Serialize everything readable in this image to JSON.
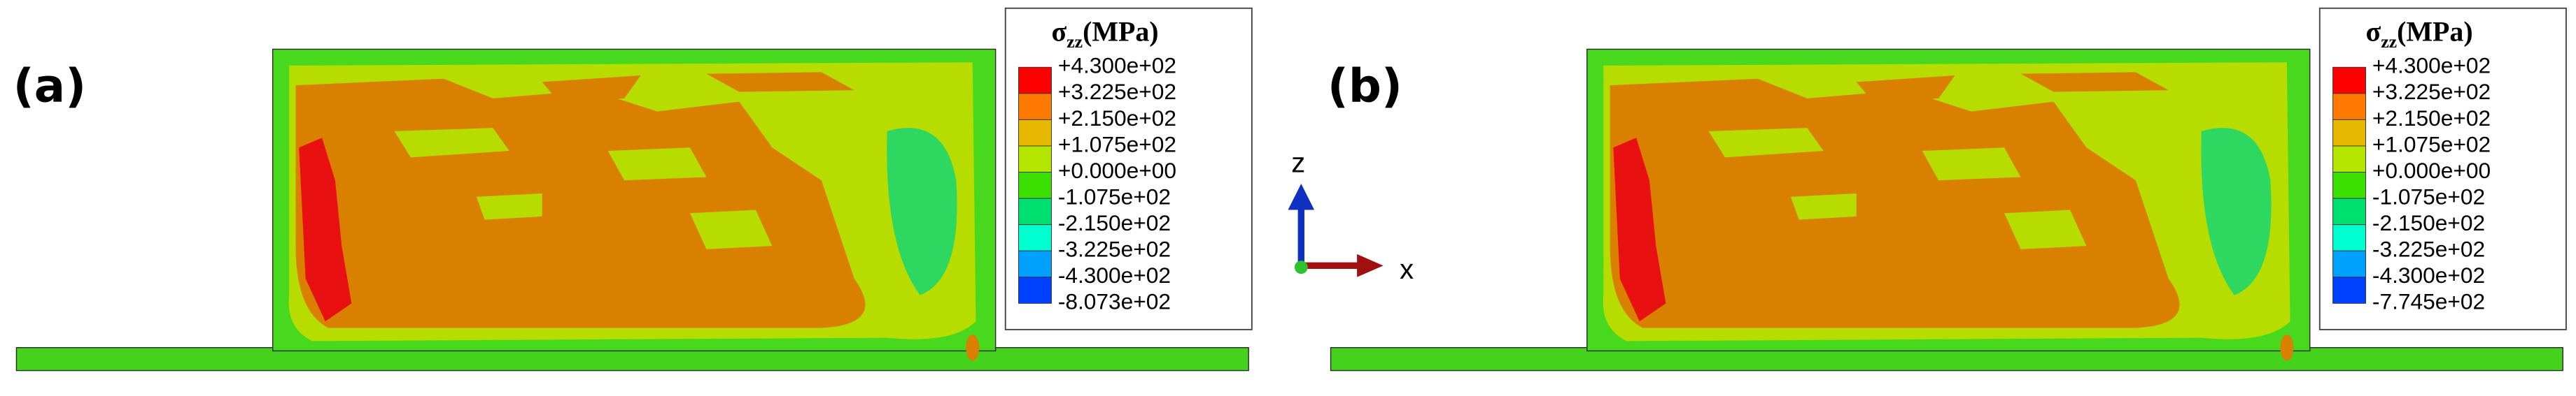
{
  "panels": [
    {
      "label": "(a)",
      "legend": {
        "symbol": "σ",
        "subscript": "zz",
        "unit": "(MPa)",
        "entries": [
          "+4.300e+02",
          "+3.225e+02",
          "+2.150e+02",
          "+1.075e+02",
          "+0.000e+00",
          "-1.075e+02",
          "-2.150e+02",
          "-3.225e+02",
          "-4.300e+02",
          "-8.073e+02"
        ]
      }
    },
    {
      "label": "(b)",
      "legend": {
        "symbol": "σ",
        "subscript": "zz",
        "unit": "(MPa)",
        "entries": [
          "+4.300e+02",
          "+3.225e+02",
          "+2.150e+02",
          "+1.075e+02",
          "+0.000e+00",
          "-1.075e+02",
          "-2.150e+02",
          "-3.225e+02",
          "-4.300e+02",
          "-7.745e+02"
        ]
      }
    }
  ],
  "triad": {
    "z": "z",
    "x": "x"
  }
}
